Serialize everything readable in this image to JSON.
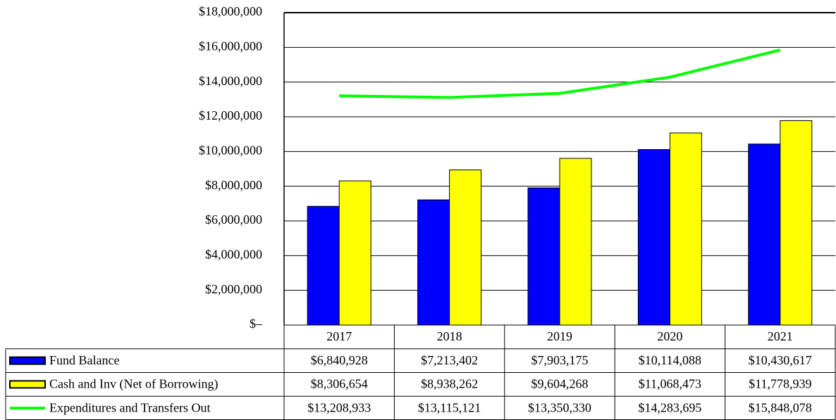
{
  "chart_data": {
    "type": "bar",
    "categories": [
      "2017",
      "2018",
      "2019",
      "2020",
      "2021"
    ],
    "series": [
      {
        "name": "Fund Balance",
        "type": "bar",
        "color": "#0000ff",
        "values": [
          6840928,
          7213402,
          7903175,
          10114088,
          10430617
        ],
        "value_labels": [
          "$6,840,928",
          "$7,213,402",
          "$7,903,175",
          "$10,114,088",
          "$10,430,617"
        ]
      },
      {
        "name": "Cash and Inv (Net of Borrowing)",
        "type": "bar",
        "color": "#ffff00",
        "values": [
          8306654,
          8938262,
          9604268,
          11068473,
          11778939
        ],
        "value_labels": [
          "$8,306,654",
          "$8,938,262",
          "$9,604,268",
          "$11,068,473",
          "$11,778,939"
        ]
      },
      {
        "name": "Expenditures and Transfers Out",
        "type": "line",
        "color": "#00ff00",
        "values": [
          13208933,
          13115121,
          13350330,
          14283695,
          15848078
        ],
        "value_labels": [
          "$13,208,933",
          "$13,115,121",
          "$13,350,330",
          "$14,283,695",
          "$15,848,078"
        ]
      }
    ],
    "ylim": [
      0,
      18000000
    ],
    "yticks": [
      {
        "value": 0,
        "label": "$–"
      },
      {
        "value": 2000000,
        "label": "$2,000,000"
      },
      {
        "value": 4000000,
        "label": "$4,000,000"
      },
      {
        "value": 6000000,
        "label": "$6,000,000"
      },
      {
        "value": 8000000,
        "label": "$8,000,000"
      },
      {
        "value": 10000000,
        "label": "$10,000,000"
      },
      {
        "value": 12000000,
        "label": "$12,000,000"
      },
      {
        "value": 14000000,
        "label": "$14,000,000"
      },
      {
        "value": 16000000,
        "label": "$16,000,000"
      },
      {
        "value": 18000000,
        "label": "$18,000,000"
      }
    ],
    "grid": true
  }
}
